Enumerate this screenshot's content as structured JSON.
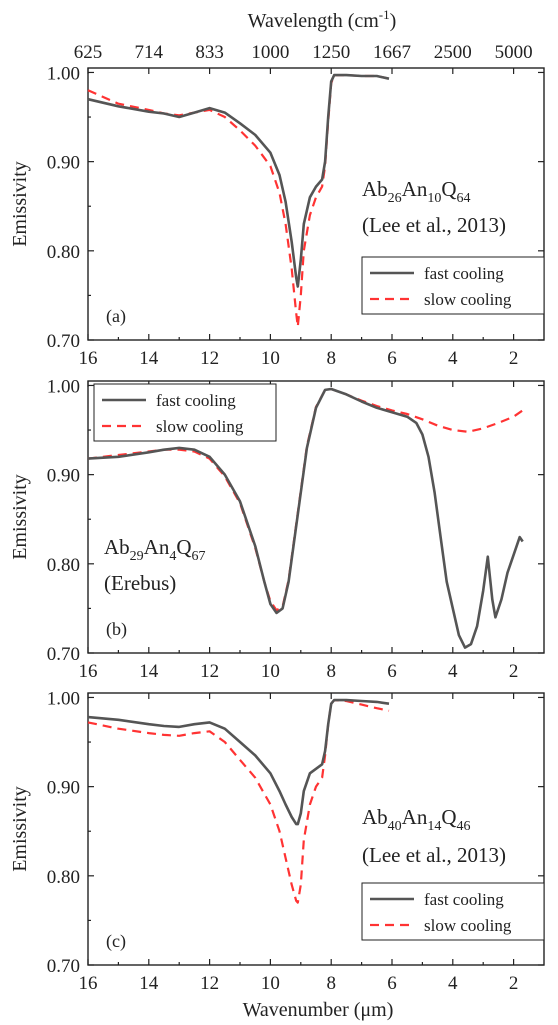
{
  "top_axis": {
    "label_main": "Wavelength (cm",
    "label_sup": "-1",
    "label_end": ")",
    "ticks": [
      {
        "label": "625",
        "at_um": 16
      },
      {
        "label": "714",
        "at_um": 14
      },
      {
        "label": "833",
        "at_um": 12
      },
      {
        "label": "1000",
        "at_um": 10
      },
      {
        "label": "1250",
        "at_um": 8
      },
      {
        "label": "1667",
        "at_um": 6
      },
      {
        "label": "2500",
        "at_um": 4
      },
      {
        "label": "5000",
        "at_um": 2
      }
    ]
  },
  "ylabel": "Emissivity",
  "xlabel": "Wavenumber (μm)",
  "legend": {
    "fast": "fast cooling",
    "slow": "slow cooling"
  },
  "colors": {
    "fast": "#555555",
    "slow": "#ff3333",
    "axis": "#222222"
  },
  "chart_data": [
    {
      "type": "line",
      "panel_label": "(a)",
      "annotation": {
        "parts": [
          [
            "Ab",
            ""
          ],
          [
            "26",
            "sub"
          ],
          [
            "An",
            ""
          ],
          [
            "10",
            "sub"
          ],
          [
            "Q",
            ""
          ],
          [
            "64",
            "sub"
          ]
        ],
        "line2": "(Lee et al., 2013)"
      },
      "xlim": [
        16,
        1
      ],
      "ylim": [
        0.7,
        1.005
      ],
      "xticks": [
        16,
        14,
        12,
        10,
        8,
        6,
        4,
        2
      ],
      "yticks": [
        "0.70",
        "0.80",
        "0.90",
        "1.00"
      ],
      "legend_position": "bottom-right",
      "series": [
        {
          "name": "fast cooling",
          "x": [
            16,
            15,
            14,
            13.5,
            13,
            12.5,
            12,
            11.5,
            11,
            10.5,
            10,
            9.7,
            9.5,
            9.3,
            9.15,
            9.1,
            9.0,
            8.9,
            8.7,
            8.5,
            8.3,
            8.2,
            8.1,
            8.0,
            7.9,
            7.5,
            7,
            6.5,
            6.1
          ],
          "y": [
            0.97,
            0.962,
            0.956,
            0.954,
            0.95,
            0.955,
            0.96,
            0.955,
            0.943,
            0.93,
            0.91,
            0.885,
            0.855,
            0.81,
            0.77,
            0.76,
            0.79,
            0.83,
            0.86,
            0.872,
            0.88,
            0.9,
            0.95,
            0.99,
            0.997,
            0.997,
            0.996,
            0.996,
            0.993
          ]
        },
        {
          "name": "slow cooling",
          "x": [
            16,
            15,
            14,
            13.5,
            13,
            12.5,
            12,
            11.5,
            11,
            10.5,
            10,
            9.7,
            9.5,
            9.3,
            9.15,
            9.1,
            9.0,
            8.9,
            8.7,
            8.5,
            8.3,
            8.2,
            8.1,
            8.0,
            7.9,
            7.5,
            7,
            6.5,
            6.1
          ],
          "y": [
            0.98,
            0.965,
            0.958,
            0.954,
            0.952,
            0.955,
            0.958,
            0.95,
            0.935,
            0.918,
            0.895,
            0.865,
            0.83,
            0.78,
            0.73,
            0.715,
            0.75,
            0.8,
            0.84,
            0.86,
            0.872,
            0.895,
            0.945,
            0.988,
            0.997,
            0.997,
            0.996,
            0.996,
            0.993
          ]
        }
      ]
    },
    {
      "type": "line",
      "panel_label": "(b)",
      "annotation": {
        "parts": [
          [
            "Ab",
            ""
          ],
          [
            "29",
            "sub"
          ],
          [
            "An",
            ""
          ],
          [
            "4",
            "sub"
          ],
          [
            "Q",
            ""
          ],
          [
            "67",
            "sub"
          ]
        ],
        "line2": "(Erebus)"
      },
      "xlim": [
        16,
        1
      ],
      "ylim": [
        0.7,
        1.005
      ],
      "xticks": [
        16,
        14,
        12,
        10,
        8,
        6,
        4,
        2
      ],
      "yticks": [
        "0.70",
        "0.80",
        "0.90",
        "1.00"
      ],
      "legend_position": "top-left",
      "series": [
        {
          "name": "fast cooling",
          "x": [
            16,
            15,
            14,
            13.5,
            13,
            12.5,
            12,
            11.5,
            11,
            10.5,
            10.2,
            10,
            9.8,
            9.6,
            9.4,
            9.2,
            9.0,
            8.8,
            8.5,
            8.2,
            8.0,
            7.5,
            7,
            6.5,
            6,
            5.5,
            5.2,
            5.0,
            4.8,
            4.6,
            4.4,
            4.2,
            4.0,
            3.8,
            3.6,
            3.4,
            3.2,
            3.0,
            2.85,
            2.7,
            2.6,
            2.4,
            2.2,
            2.0,
            1.8,
            1.7
          ],
          "y": [
            0.918,
            0.92,
            0.925,
            0.928,
            0.93,
            0.928,
            0.92,
            0.9,
            0.87,
            0.82,
            0.78,
            0.755,
            0.745,
            0.75,
            0.78,
            0.83,
            0.88,
            0.93,
            0.975,
            0.995,
            0.996,
            0.99,
            0.982,
            0.975,
            0.97,
            0.965,
            0.958,
            0.945,
            0.92,
            0.88,
            0.83,
            0.78,
            0.75,
            0.72,
            0.706,
            0.71,
            0.73,
            0.77,
            0.808,
            0.76,
            0.74,
            0.76,
            0.79,
            0.81,
            0.83,
            0.825
          ]
        },
        {
          "name": "slow cooling",
          "x": [
            16,
            15,
            14,
            13.5,
            13,
            12.5,
            12,
            11.5,
            11,
            10.5,
            10.2,
            10,
            9.8,
            9.6,
            9.4,
            9.2,
            9.0,
            8.8,
            8.5,
            8.2,
            8.0,
            7.5,
            7,
            6.5,
            6,
            5.5,
            5,
            4.5,
            4,
            3.5,
            3,
            2.5,
            2.0,
            1.7
          ],
          "y": [
            0.918,
            0.922,
            0.926,
            0.928,
            0.928,
            0.926,
            0.918,
            0.898,
            0.868,
            0.818,
            0.78,
            0.758,
            0.748,
            0.752,
            0.782,
            0.832,
            0.882,
            0.932,
            0.976,
            0.995,
            0.996,
            0.99,
            0.983,
            0.977,
            0.972,
            0.968,
            0.962,
            0.955,
            0.95,
            0.948,
            0.952,
            0.958,
            0.965,
            0.972
          ]
        }
      ]
    },
    {
      "type": "line",
      "panel_label": "(c)",
      "annotation": {
        "parts": [
          [
            "Ab",
            ""
          ],
          [
            "40",
            "sub"
          ],
          [
            "An",
            ""
          ],
          [
            "14",
            "sub"
          ],
          [
            "Q",
            ""
          ],
          [
            "46",
            "sub"
          ]
        ],
        "line2": "(Lee et al., 2013)"
      },
      "xlim": [
        16,
        1
      ],
      "ylim": [
        0.7,
        1.005
      ],
      "xticks": [
        16,
        14,
        12,
        10,
        8,
        6,
        4,
        2
      ],
      "yticks": [
        "0.70",
        "0.80",
        "0.90",
        "1.00"
      ],
      "legend_position": "bottom-right",
      "series": [
        {
          "name": "fast cooling",
          "x": [
            16,
            15,
            14,
            13.5,
            13,
            12.5,
            12,
            11.5,
            11,
            10.5,
            10,
            9.7,
            9.5,
            9.3,
            9.15,
            9.1,
            9.0,
            8.9,
            8.7,
            8.5,
            8.3,
            8.2,
            8.1,
            8.0,
            7.9,
            7.5,
            7,
            6.5,
            6.1
          ],
          "y": [
            0.978,
            0.975,
            0.97,
            0.968,
            0.967,
            0.97,
            0.972,
            0.965,
            0.95,
            0.935,
            0.915,
            0.895,
            0.88,
            0.866,
            0.858,
            0.858,
            0.87,
            0.895,
            0.915,
            0.92,
            0.925,
            0.94,
            0.97,
            0.993,
            0.997,
            0.997,
            0.996,
            0.995,
            0.993
          ]
        },
        {
          "name": "slow cooling",
          "x": [
            16,
            15,
            14,
            13.5,
            13,
            12.5,
            12,
            11.5,
            11,
            10.5,
            10,
            9.7,
            9.5,
            9.3,
            9.15,
            9.1,
            9.0,
            8.9,
            8.7,
            8.5,
            8.3,
            8.2,
            8.1,
            8.0,
            7.9,
            7.5,
            7,
            6.5,
            6.1
          ],
          "y": [
            0.972,
            0.965,
            0.96,
            0.958,
            0.957,
            0.96,
            0.962,
            0.95,
            0.93,
            0.91,
            0.88,
            0.85,
            0.82,
            0.79,
            0.772,
            0.77,
            0.79,
            0.84,
            0.88,
            0.9,
            0.91,
            0.935,
            0.97,
            0.993,
            0.997,
            0.996,
            0.992,
            0.988,
            0.985
          ]
        }
      ]
    }
  ]
}
